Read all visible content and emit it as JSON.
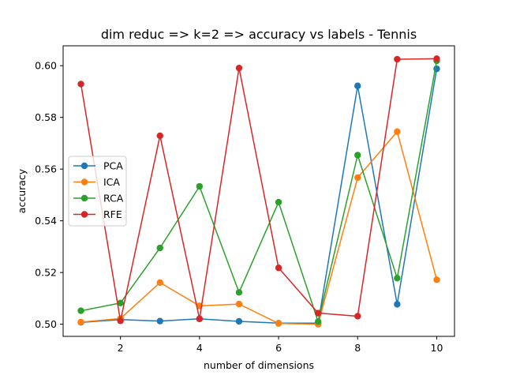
{
  "chart_data": {
    "type": "line",
    "title": "dim reduc => k=2 => accuracy vs labels - Tennis",
    "xlabel": "number of dimensions",
    "ylabel": "accuracy",
    "x": [
      1,
      2,
      3,
      4,
      5,
      6,
      7,
      8,
      9,
      10
    ],
    "xlim": [
      0.55,
      10.45
    ],
    "ylim": [
      0.4953,
      0.6077
    ],
    "xticks": [
      2,
      4,
      6,
      8,
      10
    ],
    "yticks": [
      0.5,
      0.52,
      0.54,
      0.56,
      0.58,
      0.6
    ],
    "xtick_labels": [
      "2",
      "4",
      "6",
      "8",
      "10"
    ],
    "ytick_labels": [
      "0.50",
      "0.52",
      "0.54",
      "0.56",
      "0.58",
      "0.60"
    ],
    "grid": false,
    "legend": "center-left",
    "series": [
      {
        "name": "PCA",
        "color": "#1f77b4",
        "values": [
          0.5007,
          0.5018,
          0.5012,
          0.5021,
          0.5011,
          0.5004,
          0.5004,
          0.5922,
          0.5077,
          0.5988
        ]
      },
      {
        "name": "ICA",
        "color": "#ff7f0e",
        "values": [
          0.5008,
          0.5022,
          0.5161,
          0.5071,
          0.5078,
          0.5003,
          0.5,
          0.5567,
          0.5745,
          0.5172
        ]
      },
      {
        "name": "RCA",
        "color": "#2ca02c",
        "values": [
          0.5052,
          0.5082,
          0.5295,
          0.5533,
          0.5123,
          0.5472,
          0.501,
          0.5654,
          0.5178,
          0.6019
        ]
      },
      {
        "name": "RFE",
        "color": "#d62728",
        "values": [
          0.5929,
          0.5013,
          0.5729,
          0.5021,
          0.5991,
          0.5218,
          0.5043,
          0.5031,
          0.6025,
          0.6027
        ]
      }
    ]
  }
}
